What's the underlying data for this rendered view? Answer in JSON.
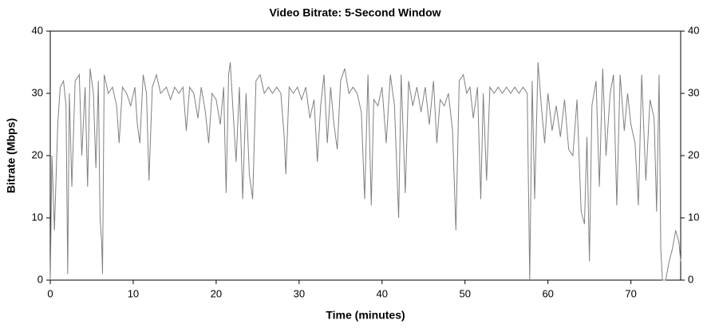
{
  "chart_data": {
    "type": "line",
    "title": "Video Bitrate: 5-Second Window",
    "x_label": "Time (minutes)",
    "y_label": "Bitrate (Mbps)",
    "xlim": [
      0,
      76
    ],
    "ylim": [
      0,
      40
    ],
    "xticks": [
      0,
      10,
      20,
      30,
      40,
      50,
      60,
      70
    ],
    "yticks": [
      0,
      10,
      20,
      30,
      40
    ],
    "color": "#808080",
    "grid": false,
    "x": [
      0,
      0.2,
      0.5,
      0.9,
      1.2,
      1.6,
      1.9,
      2.1,
      2.3,
      2.6,
      3.0,
      3.5,
      3.8,
      4.2,
      4.5,
      4.8,
      5.2,
      5.5,
      5.8,
      6.0,
      6.2,
      6.3,
      6.5,
      7.0,
      7.5,
      8.0,
      8.3,
      8.7,
      9.2,
      9.7,
      10.2,
      10.5,
      10.8,
      11.2,
      11.6,
      11.9,
      12.3,
      12.8,
      13.3,
      14,
      14.5,
      15,
      15.5,
      16,
      16.4,
      16.8,
      17.3,
      17.8,
      18.2,
      18.7,
      19.1,
      19.5,
      20,
      20.5,
      20.9,
      21.2,
      21.5,
      21.7,
      22,
      22.4,
      22.8,
      23.2,
      23.6,
      24,
      24.4,
      24.8,
      25.3,
      25.8,
      26.3,
      26.8,
      27.3,
      27.8,
      28.2,
      28.4,
      28.8,
      29.3,
      29.8,
      30.3,
      30.8,
      31.3,
      31.8,
      32.2,
      32.6,
      33,
      33.4,
      33.8,
      34.2,
      34.6,
      35,
      35.5,
      36,
      36.5,
      37,
      37.5,
      37.9,
      38.3,
      38.7,
      39,
      39.5,
      40,
      40.5,
      41,
      41.5,
      41.8,
      42,
      42.3,
      42.8,
      43.2,
      43.7,
      44.2,
      44.7,
      45.2,
      45.7,
      46.2,
      46.6,
      47,
      47.5,
      48,
      48.5,
      48.9,
      49.3,
      49.8,
      50.2,
      50.6,
      51,
      51.5,
      51.9,
      52.2,
      52.6,
      53,
      53.5,
      54,
      54.5,
      55,
      55.5,
      56,
      56.5,
      57,
      57.5,
      57.8,
      58.1,
      58.4,
      58.8,
      59.2,
      59.6,
      60,
      60.5,
      61,
      61.5,
      62,
      62.5,
      63,
      63.5,
      64,
      64.4,
      64.7,
      65,
      65.3,
      65.8,
      66.2,
      66.6,
      67,
      67.5,
      67.9,
      68.3,
      68.7,
      69.2,
      69.6,
      70,
      70.5,
      70.9,
      71.3,
      71.8,
      72.3,
      72.8,
      73.1,
      73.4,
      73.6,
      73.8,
      74.2,
      74.6,
      75,
      75.4,
      75.8,
      76
    ],
    "values": [
      0,
      20,
      8,
      25,
      31,
      32,
      28,
      1,
      30,
      15,
      32,
      33,
      20,
      31,
      15,
      34,
      30,
      18,
      32,
      10,
      6,
      1,
      33,
      30,
      31,
      28,
      22,
      31,
      30,
      28,
      31,
      25,
      22,
      33,
      30,
      16,
      31,
      33,
      30,
      31,
      29,
      31,
      30,
      31,
      24,
      31,
      30,
      26,
      31,
      27,
      22,
      30,
      29,
      25,
      31,
      14,
      33,
      35,
      28,
      19,
      31,
      13,
      30,
      17,
      13,
      32,
      33,
      30,
      31,
      30,
      31,
      30,
      23,
      17,
      31,
      30,
      31,
      29,
      31,
      26,
      29,
      19,
      28,
      33,
      22,
      31,
      25,
      21,
      32,
      34,
      30,
      31,
      30,
      27,
      13,
      33,
      12,
      29,
      28,
      31,
      22,
      33,
      28,
      17,
      10,
      33,
      14,
      32,
      28,
      31,
      27,
      31,
      25,
      32,
      22,
      29,
      28,
      30,
      24,
      8,
      32,
      33,
      30,
      31,
      26,
      31,
      13,
      30,
      16,
      31,
      30,
      31,
      30,
      31,
      30,
      31,
      30,
      31,
      30,
      0,
      32,
      13,
      35,
      28,
      22,
      30,
      24,
      28,
      23,
      29,
      21,
      20,
      29,
      11,
      9,
      23,
      3,
      28,
      32,
      15,
      34,
      20,
      30,
      33,
      12,
      33,
      24,
      30,
      25,
      22,
      12,
      33,
      16,
      29,
      26,
      11,
      33,
      5,
      0,
      0,
      3,
      5,
      8,
      6,
      3
    ]
  }
}
